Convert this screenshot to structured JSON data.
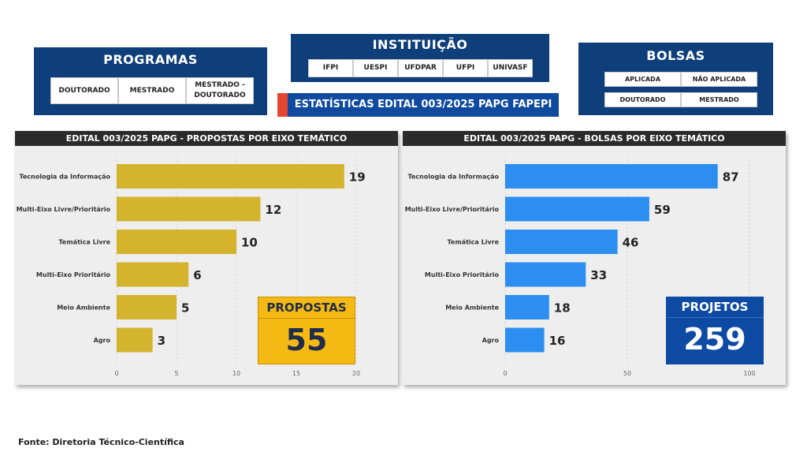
{
  "programas": {
    "title": "PROGRAMAS",
    "buttons": [
      "DOUTORADO",
      "MESTRADO",
      "MESTRADO - DOUTORADO"
    ]
  },
  "instituicao": {
    "title": "INSTITUIÇÃO",
    "buttons": [
      "IFPI",
      "UESPI",
      "UFDPAR",
      "UFPI",
      "UNIVASF"
    ]
  },
  "bolsas": {
    "title": "BOLSAS",
    "buttons": [
      "APLICADA",
      "NÃO APLICADA",
      "DOUTORADO",
      "MESTRADO"
    ]
  },
  "banner": {
    "text": "ESTATÍSTICAS EDITAL 003/2025 PAPG FAPEPI"
  },
  "kpis": {
    "propostas": {
      "label": "PROPOSTAS",
      "value": "55"
    },
    "projetos": {
      "label": "PROJETOS",
      "value": "259"
    }
  },
  "footer": {
    "text": "Fonte: Diretoria Técnico-Científica"
  },
  "colors": {
    "panel": "#0f3f7a",
    "banner": "#0f4a9e",
    "accent": "#e4462f",
    "gold_bar": "#d4b42c",
    "blue_bar": "#2b8ef0",
    "kpi_gold": "#f5b914",
    "kpi_blue": "#0c4aa3"
  },
  "chart_data": [
    {
      "type": "bar",
      "orientation": "horizontal",
      "title": "EDITAL 003/2025 PAPG - PROPOSTAS POR EIXO TEMÁTICO",
      "categories": [
        "Tecnologia da Informação",
        "Multi-Eixo Livre/Prioritário",
        "Temática Livre",
        "Multi-Eixo Prioritário",
        "Meio Ambiente",
        "Agro"
      ],
      "values": [
        19,
        12,
        10,
        6,
        5,
        3
      ],
      "xlim": [
        0,
        20
      ],
      "xticks": [
        0,
        5,
        10,
        15,
        20
      ],
      "grid": true,
      "color": "#d4b42c"
    },
    {
      "type": "bar",
      "orientation": "horizontal",
      "title": "EDITAL 003/2025 PAPG - BOLSAS POR EIXO TEMÁTICO",
      "categories": [
        "Tecnologia da Informação",
        "Multi-Eixo Livre/Prioritário",
        "Temática Livre",
        "Multi-Eixo Prioritário",
        "Meio Ambiente",
        "Agro"
      ],
      "values": [
        87,
        59,
        46,
        33,
        18,
        16
      ],
      "xlim": [
        0,
        100
      ],
      "xticks": [
        0,
        50,
        100
      ],
      "grid": true,
      "color": "#2b8ef0"
    }
  ]
}
